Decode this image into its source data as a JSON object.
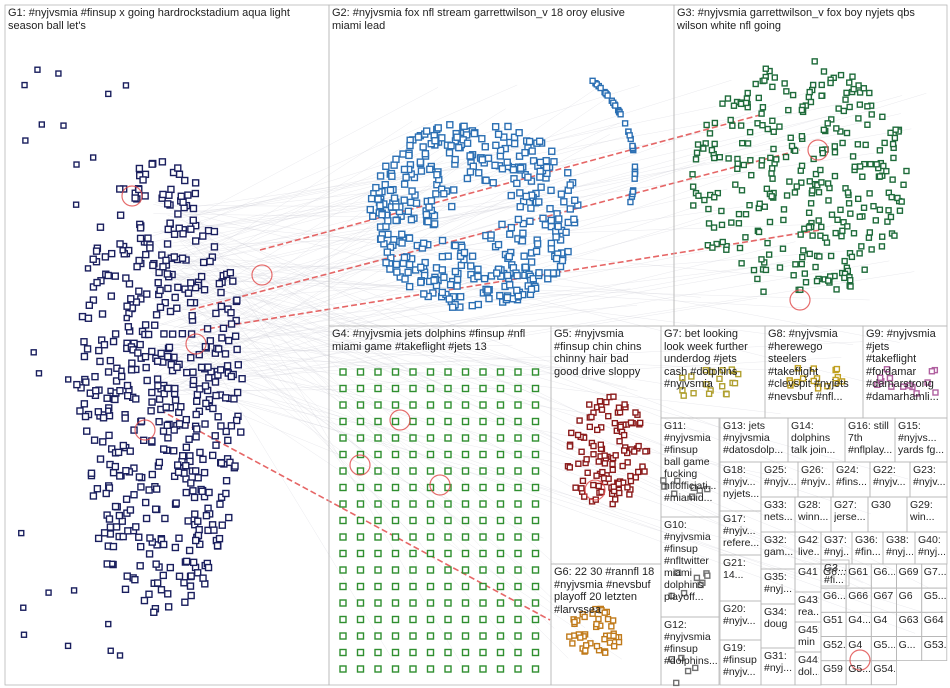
{
  "groups": [
    {
      "id": "G1",
      "label": "G1: #nyjvsmia #finsup x going hardrockstadium aqua light\nseason ball let's",
      "color": "#1a1f5e"
    },
    {
      "id": "G2",
      "label": "G2: #nyjvsmia fox nfl stream garrettwilson_v 18 oroy elusive\nmiami lead",
      "color": "#2b6fb3"
    },
    {
      "id": "G3",
      "label": "G3: #nyjvsmia garrettwilson_v fox boy nyjets qbs\nwilson white nfl going",
      "color": "#1e6b3a"
    },
    {
      "id": "G4",
      "label": "G4: #nyjvsmia jets dolphins #finsup #nfl\nmiami game #takeflight #jets 13",
      "color": "#2f8f2f"
    },
    {
      "id": "G5",
      "label": "G5: #nyjvsmia\n#finsup chin chins\nchinny hair bad\ngood drive sloppy",
      "color": "#8b1a1a"
    },
    {
      "id": "G6",
      "label": "G6: 22 30 #rannfl 18\n#nyjvsmia #nevsbuf\nplayoff 20 letzten\n#larvssea",
      "color": "#c07a1a"
    },
    {
      "id": "G7",
      "label": "G7: bet looking\nlook week further\nunderdog #jets\ncash #dolphins\n#nyjvsmia",
      "color": "#b0a030"
    },
    {
      "id": "G8",
      "label": "G8: #nyjvsmia\n#herewego\nsteelers\n#takeflight\n#clevspit #nyjets\n#nevsbuf #nfl...",
      "color": "#c0a020"
    },
    {
      "id": "G9",
      "label": "G9: #nyjvsmia\n#jets\n#takeflight\n#fordamar\n#damarstrong\n#damarhamli...",
      "color": "#b060a0"
    },
    {
      "id": "G10",
      "label": "G10:\n#nyjvsmia\n#finsup\n#nfltwitter\nmiami\ndolphins\nplayoff...",
      "color": "#707070"
    },
    {
      "id": "G11",
      "label": "G11:\n#nyjvsmia\n#finsup\nball game\nfucking\nnflofficiati...\n#miamid...",
      "color": "#707070"
    },
    {
      "id": "G12",
      "label": "G12:\n#nyjvsmia\n#finsup\n#dolphins...",
      "color": "#707070"
    },
    {
      "id": "G13",
      "label": "G13: jets\n#nyjvsmia\n#datosdolp...",
      "color": "#707070"
    },
    {
      "id": "G14",
      "label": "G14:\ndolphins\ntalk join...",
      "color": "#707070"
    },
    {
      "id": "G15",
      "label": "G15:\n#nyjvs...\nyards fg...",
      "color": "#707070"
    },
    {
      "id": "G16",
      "label": "G16: still\n7th\n#nflplay...",
      "color": "#707070"
    },
    {
      "id": "G17",
      "label": "G17:\n#nyjv...\nrefere...",
      "color": "#707070"
    },
    {
      "id": "G18",
      "label": "G18:\n#nyjv...\nnyjets...",
      "color": "#707070"
    },
    {
      "id": "G19",
      "label": "G19:\n#finsup\n#nyjv...",
      "color": "#707070"
    },
    {
      "id": "G20",
      "label": "G20:\n#nyjv...",
      "color": "#707070"
    },
    {
      "id": "G21",
      "label": "G21:\n14...",
      "color": "#707070"
    },
    {
      "id": "G22",
      "label": "G22:\n#nyjv...",
      "color": "#707070"
    },
    {
      "id": "G23",
      "label": "G23:\n#nyjv...",
      "color": "#707070"
    },
    {
      "id": "G24",
      "label": "G24:\n#fins...",
      "color": "#707070"
    },
    {
      "id": "G25",
      "label": "G25:\n#nyjv...",
      "color": "#707070"
    },
    {
      "id": "G26",
      "label": "G26:\n#nyjv...",
      "color": "#707070"
    },
    {
      "id": "G27",
      "label": "G27:\njerse...",
      "color": "#707070"
    },
    {
      "id": "G28",
      "label": "G28:\nwinn...",
      "color": "#707070"
    },
    {
      "id": "G29",
      "label": "G29:\nwin...",
      "color": "#707070"
    },
    {
      "id": "G30",
      "label": "G30",
      "color": "#707070"
    },
    {
      "id": "G31",
      "label": "G31:\n#nyj...",
      "color": "#707070"
    },
    {
      "id": "G32",
      "label": "G32:\ngam...",
      "color": "#707070"
    },
    {
      "id": "G33",
      "label": "G33:\nnets...",
      "color": "#707070"
    },
    {
      "id": "G34",
      "label": "G34:\ndoug",
      "color": "#707070"
    },
    {
      "id": "G35",
      "label": "G35:\n#nyj...",
      "color": "#707070"
    },
    {
      "id": "G36",
      "label": "G36:\n#fin...",
      "color": "#707070"
    },
    {
      "id": "G37",
      "label": "G37:\n#nyj...",
      "color": "#707070"
    },
    {
      "id": "G38",
      "label": "G38:\n#nyj...",
      "color": "#707070"
    },
    {
      "id": "G39",
      "label": "G3...\n#fi...",
      "color": "#707070"
    },
    {
      "id": "G40",
      "label": "G40:\n#nyj...",
      "color": "#707070"
    },
    {
      "id": "G41",
      "label": "G41",
      "color": "#707070"
    },
    {
      "id": "G42",
      "label": "G42:\nlive...",
      "color": "#707070"
    },
    {
      "id": "G43",
      "label": "G43:\nrea...",
      "color": "#707070"
    },
    {
      "id": "G44",
      "label": "G44:\ndol...",
      "color": "#707070"
    },
    {
      "id": "G45",
      "label": "G45:\nmin",
      "color": "#707070"
    },
    {
      "id": "small_tiles",
      "labels": [
        "G6...",
        "G61",
        "G6...",
        "G69",
        "G7...",
        "G6...",
        "G66",
        "G67",
        "G6",
        "G5...",
        "G51",
        "G4...",
        "G4",
        "G63",
        "G64",
        "G52...",
        "G4",
        "G5...",
        "G...",
        "G53...",
        "G59",
        "G5...",
        "G54..."
      ]
    }
  ]
}
